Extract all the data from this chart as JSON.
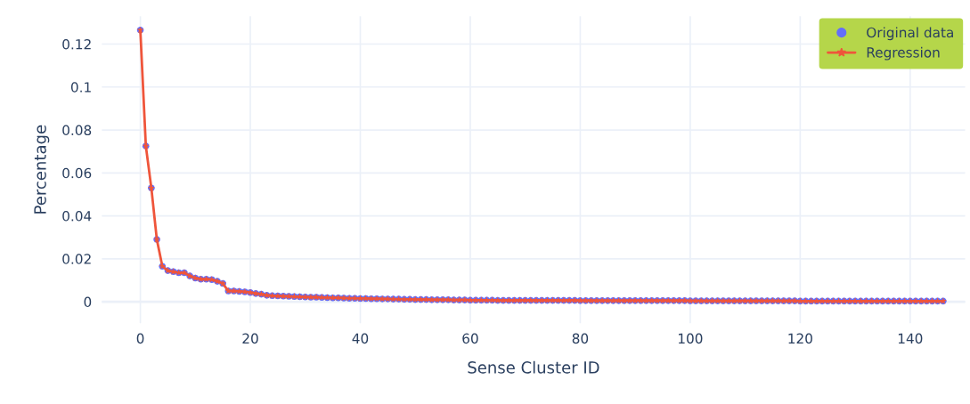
{
  "chart_data": {
    "type": "line",
    "xlabel": "Sense Cluster ID",
    "ylabel": "Percentage",
    "xlim": [
      -7,
      150
    ],
    "ylim": [
      -0.01,
      0.133
    ],
    "xticks": [
      0,
      20,
      40,
      60,
      80,
      100,
      120,
      140
    ],
    "yticks": [
      0,
      {
        "value": 0.02,
        "label": "0.02"
      },
      {
        "value": 0.04,
        "label": "0.04"
      },
      {
        "value": 0.06,
        "label": "0.06"
      },
      {
        "value": 0.08,
        "label": "0.08"
      },
      {
        "value": 0.1,
        "label": "0.1"
      },
      {
        "value": 0.12,
        "label": "0.12"
      }
    ],
    "grid": true,
    "legend": "top right",
    "x": [
      0,
      1,
      2,
      3,
      4,
      5,
      6,
      7,
      8,
      9,
      10,
      11,
      12,
      13,
      14,
      15,
      16,
      17,
      18,
      19,
      20,
      21,
      22,
      23,
      24,
      25,
      26,
      27,
      28,
      29,
      30,
      31,
      32,
      33,
      34,
      35,
      36,
      37,
      38,
      39,
      40,
      41,
      42,
      43,
      44,
      45,
      46,
      47,
      48,
      49,
      50,
      51,
      52,
      53,
      54,
      55,
      56,
      57,
      58,
      59,
      60,
      61,
      62,
      63,
      64,
      65,
      66,
      67,
      68,
      69,
      70,
      71,
      72,
      73,
      74,
      75,
      76,
      77,
      78,
      79,
      80,
      81,
      82,
      83,
      84,
      85,
      86,
      87,
      88,
      89,
      90,
      91,
      92,
      93,
      94,
      95,
      96,
      97,
      98,
      99,
      100,
      101,
      102,
      103,
      104,
      105,
      106,
      107,
      108,
      109,
      110,
      111,
      112,
      113,
      114,
      115,
      116,
      117,
      118,
      119,
      120,
      121,
      122,
      123,
      124,
      125,
      126,
      127,
      128,
      129,
      130,
      131,
      132,
      133,
      134,
      135,
      136,
      137,
      138,
      139,
      140,
      141,
      142,
      143,
      144,
      145,
      146
    ],
    "series": [
      {
        "name": "Original data",
        "type": "scatter",
        "marker": "circle",
        "color": "#636efa",
        "values": [
          0.1265,
          0.0725,
          0.053,
          0.029,
          0.0165,
          0.0145,
          0.014,
          0.0135,
          0.0135,
          0.012,
          0.011,
          0.0105,
          0.0105,
          0.0103,
          0.0095,
          0.0085,
          0.005,
          0.005,
          0.0048,
          0.0046,
          0.0043,
          0.0038,
          0.0035,
          0.003,
          0.0028,
          0.0027,
          0.0026,
          0.0025,
          0.0024,
          0.0023,
          0.0022,
          0.0021,
          0.0021,
          0.002,
          0.0019,
          0.0018,
          0.0018,
          0.0017,
          0.0016,
          0.0016,
          0.0015,
          0.0015,
          0.0014,
          0.0014,
          0.0013,
          0.0013,
          0.0012,
          0.0012,
          0.0011,
          0.0011,
          0.001,
          0.001,
          0.001,
          0.0009,
          0.0009,
          0.0009,
          0.0009,
          0.0008,
          0.0008,
          0.0008,
          0.0007,
          0.0007,
          0.0007,
          0.0007,
          0.0007,
          0.0006,
          0.0006,
          0.0006,
          0.0006,
          0.0006,
          0.0006,
          0.0006,
          0.0006,
          0.0006,
          0.0006,
          0.0006,
          0.0006,
          0.0006,
          0.0006,
          0.0006,
          0.0005,
          0.0005,
          0.0005,
          0.0005,
          0.0005,
          0.0005,
          0.0005,
          0.0005,
          0.0005,
          0.0005,
          0.0005,
          0.0005,
          0.0005,
          0.0005,
          0.0005,
          0.0005,
          0.0005,
          0.0005,
          0.0005,
          0.0005,
          0.0004,
          0.0004,
          0.0004,
          0.0004,
          0.0004,
          0.0004,
          0.0004,
          0.0004,
          0.0004,
          0.0004,
          0.0004,
          0.0004,
          0.0004,
          0.0004,
          0.0004,
          0.0004,
          0.0004,
          0.0004,
          0.0004,
          0.0004,
          0.0003,
          0.0003,
          0.0003,
          0.0003,
          0.0003,
          0.0003,
          0.0003,
          0.0003,
          0.0003,
          0.0003,
          0.0003,
          0.0003,
          0.0003,
          0.0003,
          0.0003,
          0.0003,
          0.0003,
          0.0003,
          0.0003,
          0.0003,
          0.0003,
          0.0003,
          0.0003,
          0.0003,
          0.0003,
          0.0003,
          0.0003
        ]
      },
      {
        "name": "Regression",
        "marker": "star",
        "color": "#ef553b",
        "values": [
          0.1265,
          0.0725,
          0.053,
          0.029,
          0.0165,
          0.0145,
          0.014,
          0.0135,
          0.0135,
          0.012,
          0.011,
          0.0105,
          0.0105,
          0.0103,
          0.0095,
          0.0085,
          0.005,
          0.005,
          0.0048,
          0.0046,
          0.0043,
          0.0038,
          0.0035,
          0.003,
          0.0028,
          0.0027,
          0.0026,
          0.0025,
          0.0024,
          0.0023,
          0.0022,
          0.0021,
          0.0021,
          0.002,
          0.0019,
          0.0018,
          0.0018,
          0.0017,
          0.0016,
          0.0016,
          0.0015,
          0.0015,
          0.0014,
          0.0014,
          0.0013,
          0.0013,
          0.0012,
          0.0012,
          0.0011,
          0.0011,
          0.001,
          0.001,
          0.001,
          0.0009,
          0.0009,
          0.0009,
          0.0009,
          0.0008,
          0.0008,
          0.0008,
          0.0007,
          0.0007,
          0.0007,
          0.0007,
          0.0007,
          0.0006,
          0.0006,
          0.0006,
          0.0006,
          0.0006,
          0.0006,
          0.0006,
          0.0006,
          0.0006,
          0.0006,
          0.0006,
          0.0006,
          0.0006,
          0.0006,
          0.0006,
          0.0005,
          0.0005,
          0.0005,
          0.0005,
          0.0005,
          0.0005,
          0.0005,
          0.0005,
          0.0005,
          0.0005,
          0.0005,
          0.0005,
          0.0005,
          0.0005,
          0.0005,
          0.0005,
          0.0005,
          0.0005,
          0.0005,
          0.0005,
          0.0004,
          0.0004,
          0.0004,
          0.0004,
          0.0004,
          0.0004,
          0.0004,
          0.0004,
          0.0004,
          0.0004,
          0.0004,
          0.0004,
          0.0004,
          0.0004,
          0.0004,
          0.0004,
          0.0004,
          0.0004,
          0.0004,
          0.0004,
          0.0003,
          0.0003,
          0.0003,
          0.0003,
          0.0003,
          0.0003,
          0.0003,
          0.0003,
          0.0003,
          0.0003,
          0.0003,
          0.0003,
          0.0003,
          0.0003,
          0.0003,
          0.0003,
          0.0003,
          0.0003,
          0.0003,
          0.0003,
          0.0003,
          0.0003,
          0.0003,
          0.0003,
          0.0003,
          0.0003,
          0.0003
        ]
      }
    ]
  }
}
